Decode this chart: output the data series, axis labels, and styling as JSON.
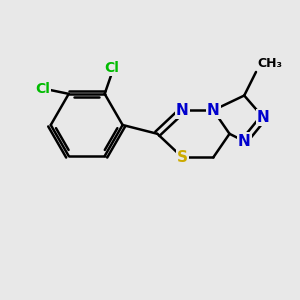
{
  "background_color": "#e8e8e8",
  "bond_color": "#000000",
  "bond_width": 1.8,
  "atom_colors": {
    "C": "#000000",
    "N": "#0000cd",
    "S": "#ccaa00",
    "Cl": "#00bb00"
  },
  "font_size": 11,
  "methyl_label": "CH₃"
}
